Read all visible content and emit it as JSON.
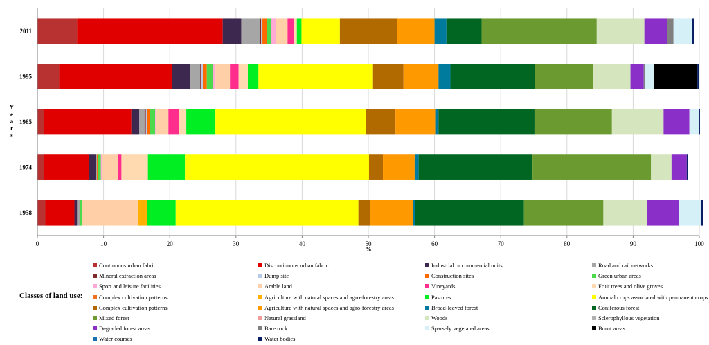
{
  "chart_data": {
    "type": "bar",
    "orientation": "horizontal",
    "stacked": true,
    "title": "",
    "xlabel": "%",
    "ylabel": "Years",
    "xlim": [
      0,
      100
    ],
    "xticks": [
      "0",
      "10",
      "20",
      "30",
      "40",
      "50",
      "60",
      "70",
      "80",
      "90",
      "100"
    ],
    "categories": [
      "2011",
      "1995",
      "1985",
      "1974",
      "1958"
    ],
    "legend_title": "Classes of land use:",
    "series": [
      {
        "name": "Continuous urban fabric",
        "color": "#b83232",
        "values": [
          6.0,
          3.3,
          1.0,
          1.0,
          1.2
        ]
      },
      {
        "name": "Discontinuous urban fabric",
        "color": "#e00000",
        "values": [
          22.0,
          17.0,
          13.2,
          6.8,
          4.4
        ]
      },
      {
        "name": "Industrial or commercial units",
        "color": "#3d2850",
        "values": [
          2.8,
          2.8,
          1.2,
          1.0,
          0.4
        ]
      },
      {
        "name": "Road and rail networks",
        "color": "#a6a6a6",
        "values": [
          2.8,
          1.5,
          0.8,
          0.2,
          0.4
        ]
      },
      {
        "name": "Mineral extraction areas",
        "color": "#7f2a2a",
        "values": [
          0.2,
          0.2,
          0.2,
          0.0,
          0.0
        ]
      },
      {
        "name": "Dump site",
        "color": "#b7c9e6",
        "values": [
          0.2,
          0.2,
          0.2,
          0.0,
          0.0
        ]
      },
      {
        "name": "Construction sites",
        "color": "#ff6a00",
        "values": [
          0.7,
          0.6,
          0.4,
          0.2,
          0.0
        ]
      },
      {
        "name": "Green urban areas",
        "color": "#4cd94c",
        "values": [
          0.6,
          0.9,
          0.8,
          0.4,
          0.4
        ]
      },
      {
        "name": "Sport and leisure facilities",
        "color": "#ffaad4",
        "values": [
          0.7,
          0.4,
          0.2,
          0.2,
          0.0
        ]
      },
      {
        "name": "Arable land",
        "color": "#ffd0a8",
        "values": [
          1.8,
          2.2,
          1.8,
          2.4,
          8.4
        ]
      },
      {
        "name": "Vineyards",
        "color": "#ff2d8c",
        "values": [
          1.0,
          1.3,
          1.6,
          0.5,
          0.0
        ]
      },
      {
        "name": "Fruit trees and olive groves",
        "color": "#ffd9b0",
        "values": [
          0.4,
          1.4,
          1.1,
          4.0,
          0.0
        ]
      },
      {
        "name": "Complex cultivation patterns",
        "color": "#f07020",
        "values": [
          0.0,
          0.0,
          0.0,
          0.0,
          0.0
        ]
      },
      {
        "name": "Agriculture with natural spaces and agro-forestry areas",
        "color": "#ffb000",
        "values": [
          0.0,
          0.0,
          0.0,
          0.0,
          1.4
        ]
      },
      {
        "name": "Pastures",
        "color": "#00ee22",
        "values": [
          0.7,
          1.6,
          4.4,
          5.6,
          4.3
        ]
      },
      {
        "name": "Annual crops associated with permanent crops",
        "color": "#ffff00",
        "values": [
          5.8,
          17.2,
          22.7,
          27.8,
          27.6
        ]
      },
      {
        "name": "Complex cultivation patterns",
        "color": "#b06a00",
        "values": [
          8.6,
          4.7,
          4.5,
          2.1,
          1.8
        ]
      },
      {
        "name": "Agriculture with natural spaces and agro-forestry areas",
        "color": "#ff9900",
        "values": [
          5.7,
          5.3,
          6.0,
          4.8,
          6.4
        ]
      },
      {
        "name": "Broad-leaved forest",
        "color": "#007b9e",
        "values": [
          1.8,
          1.8,
          0.5,
          0.6,
          0.4
        ]
      },
      {
        "name": "Coniferous forest",
        "color": "#006622",
        "values": [
          5.3,
          12.8,
          14.5,
          17.2,
          16.4
        ]
      },
      {
        "name": "Mixed forest",
        "color": "#6b9a30",
        "values": [
          17.4,
          8.8,
          11.7,
          17.9,
          12.0
        ]
      },
      {
        "name": "Natural grassland",
        "color": "#f29b9b",
        "values": [
          0.0,
          0.0,
          0.0,
          0.0,
          0.0
        ]
      },
      {
        "name": "Woods",
        "color": "#d5e5be",
        "values": [
          7.2,
          5.6,
          7.8,
          3.1,
          6.6
        ]
      },
      {
        "name": "Sclerophyllous vegetation",
        "color": "#b0b0b0",
        "values": [
          0.0,
          0.0,
          0.0,
          0.0,
          0.0
        ]
      },
      {
        "name": "Degraded forest areas",
        "color": "#8b2fc9",
        "values": [
          3.4,
          2.0,
          3.9,
          2.3,
          4.8
        ]
      },
      {
        "name": "Bare rock",
        "color": "#808080",
        "values": [
          1.0,
          0.2,
          0.0,
          0.0,
          0.0
        ]
      },
      {
        "name": "Sparsely vegetated areas",
        "color": "#d6f0f8",
        "values": [
          2.8,
          1.4,
          1.5,
          0.0,
          3.4
        ]
      },
      {
        "name": "Burnt areas",
        "color": "#000000",
        "values": [
          0.0,
          6.5,
          0.0,
          0.0,
          0.0
        ]
      },
      {
        "name": "Water courses",
        "color": "#1a6fb0",
        "values": [
          0.0,
          0.0,
          0.0,
          0.0,
          0.0
        ]
      },
      {
        "name": "Water bodies",
        "color": "#0b1f66",
        "values": [
          0.3,
          0.3,
          0.1,
          0.2,
          0.3
        ]
      }
    ]
  }
}
